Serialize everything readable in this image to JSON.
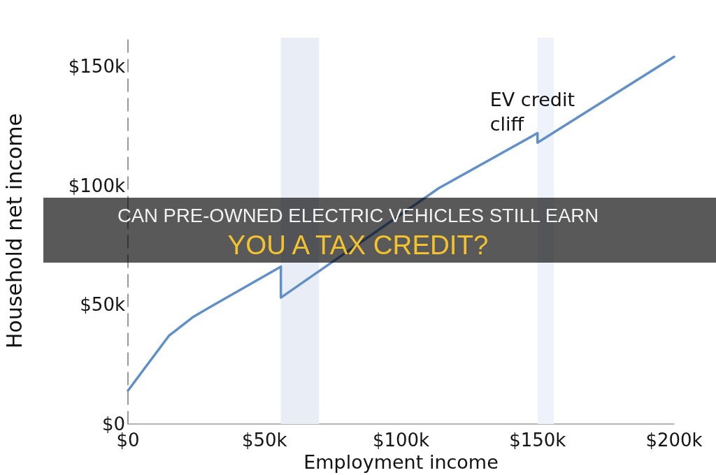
{
  "chart_data": {
    "type": "line",
    "title": "CAN PRE-OWNED ELECTRIC VEHICLES STILL EARN YOU A TAX CREDIT?",
    "xlabel": "Employment income",
    "ylabel": "Household net income",
    "x": [
      0,
      15000,
      24000,
      30000,
      56000,
      56000,
      114000,
      150000,
      150000,
      200000
    ],
    "series": [
      {
        "color": "#6190c8",
        "values": [
          14000,
          37000,
          45000,
          49000,
          66000,
          53000,
          99000,
          122000,
          118000,
          154000
        ]
      }
    ],
    "xlim": [
      0,
      200000
    ],
    "xticks": [
      {
        "value": 0,
        "label": "$0"
      },
      {
        "value": 50000,
        "label": "$50k"
      },
      {
        "value": 100000,
        "label": "$100k"
      },
      {
        "value": 150000,
        "label": "$150k"
      },
      {
        "value": 200000,
        "label": "$200k"
      }
    ],
    "ylim": [
      0,
      162000
    ],
    "yticks": [
      {
        "value": 0,
        "label": "$0"
      },
      {
        "value": 50000,
        "label": "$50k"
      },
      {
        "value": 100000,
        "label": "$100k"
      },
      {
        "value": 150000,
        "label": "$150k"
      }
    ],
    "bands": [
      {
        "axis": "x",
        "from": 56000,
        "to": 70000,
        "color": "#e9edf5"
      },
      {
        "axis": "x",
        "from": 150000,
        "to": 156000,
        "color": "#eef2fb"
      }
    ],
    "annotations": [
      {
        "text": "EV credit cliff",
        "x": 150000,
        "y": 122000
      }
    ],
    "marker": "none",
    "line_style": "solid"
  }
}
